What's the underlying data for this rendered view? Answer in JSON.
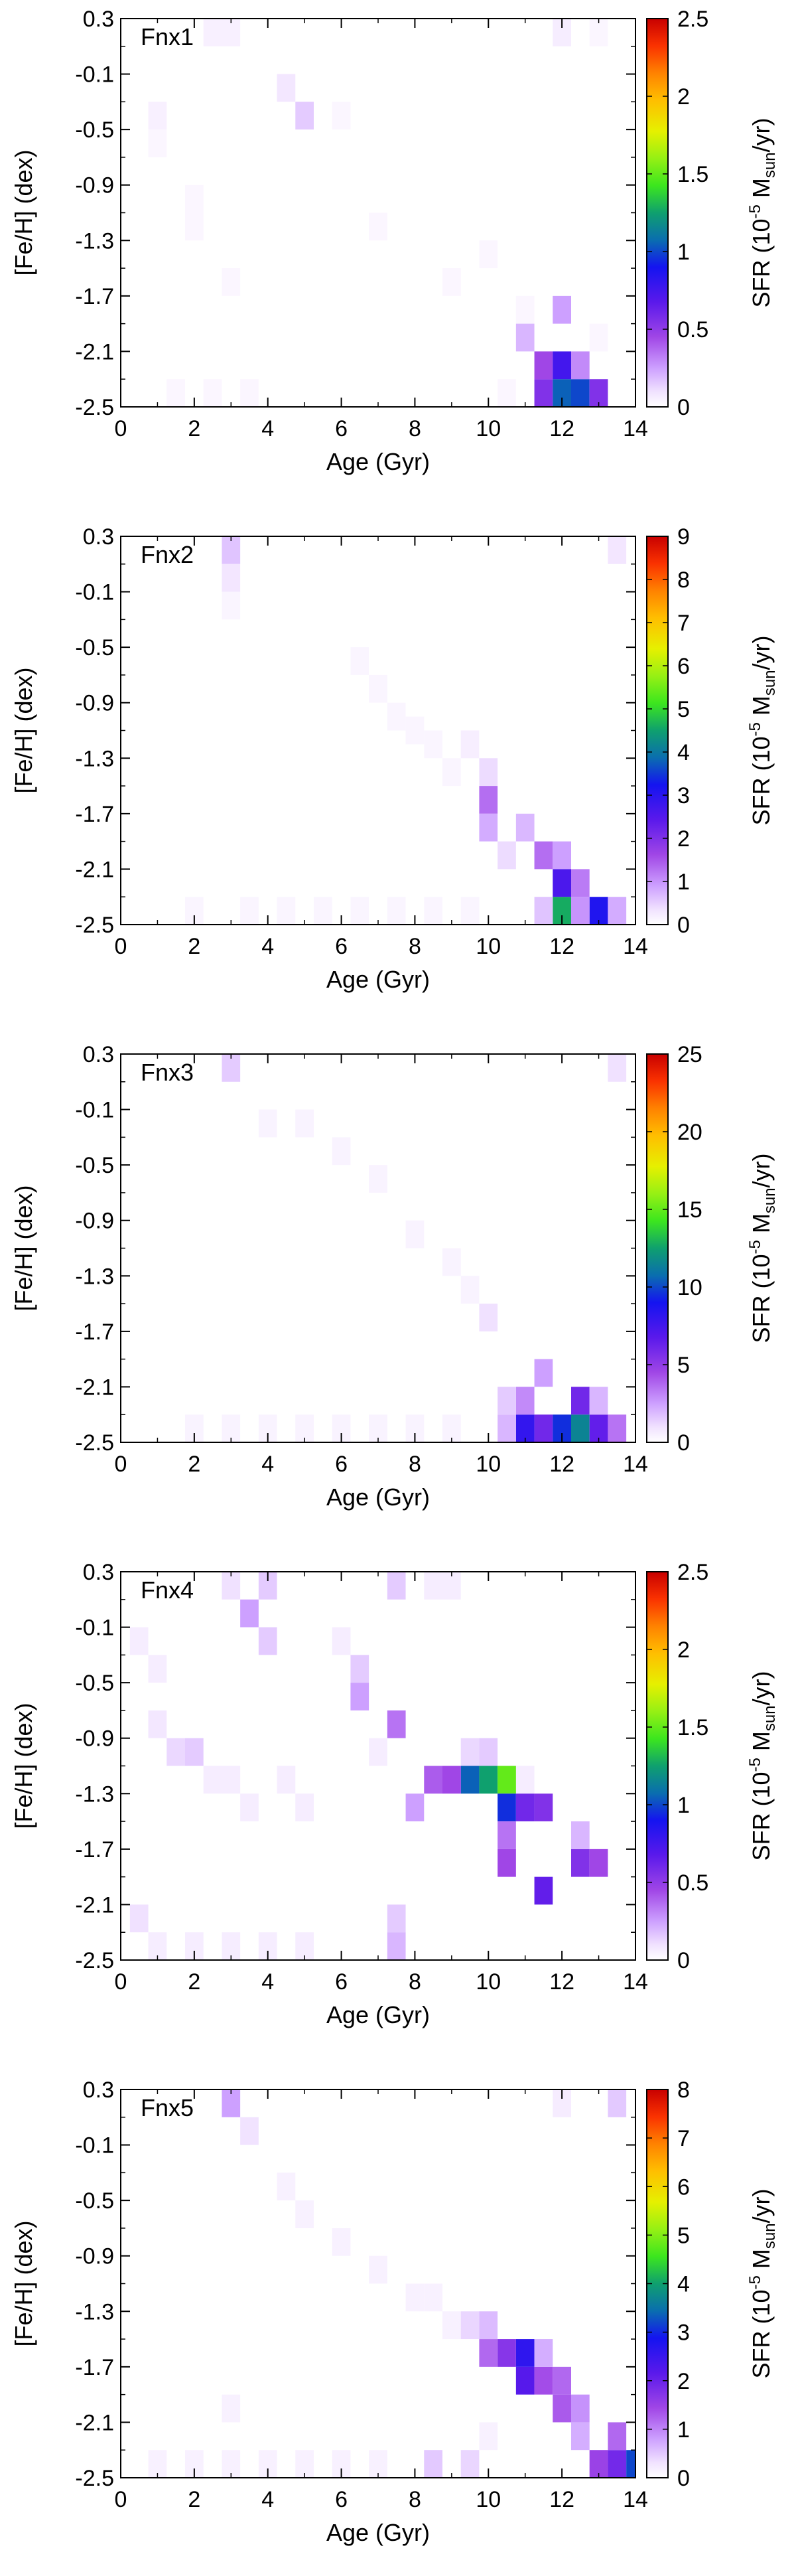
{
  "chart_data": [
    {
      "type": "heatmap",
      "panel_label": "Fnx1",
      "xlabel": "Age (Gyr)",
      "ylabel": "[Fe/H] (dex)",
      "colorbar_label": "SFR (10⁻⁵ Mₛᵤₙ/yr)",
      "colorbar_label_parts": {
        "prefix": "SFR (10",
        "exp": "-5",
        "mid": " M",
        "sub": "sun",
        "suffix": "/yr)"
      },
      "xlim": [
        0,
        14
      ],
      "ylim": [
        -2.5,
        0.3
      ],
      "xticks": [
        0,
        2,
        4,
        6,
        8,
        10,
        12,
        14
      ],
      "yticks": [
        -2.5,
        -2.1,
        -1.7,
        -1.3,
        -0.9,
        -0.5,
        -0.1,
        0.3
      ],
      "xtick_labels": [
        "0",
        "2",
        "4",
        "6",
        "8",
        "10",
        "12",
        "14"
      ],
      "ytick_labels": [
        "-2.5",
        "-2.1",
        "-1.7",
        "-1.3",
        "-0.9",
        "-0.5",
        "-0.1",
        "0.3"
      ],
      "cbar_range": [
        0,
        2.5
      ],
      "cbar_ticks": [
        0,
        0.5,
        1,
        1.5,
        2,
        2.5
      ],
      "cbar_tick_labels": [
        "0",
        "0.5",
        "1",
        "1.5",
        "2",
        "2.5"
      ],
      "age_bin_width": 0.5,
      "feh_bin_width": 0.2,
      "cells": [
        {
          "age": 11.5,
          "feh": -2.4,
          "sfr": 0.55
        },
        {
          "age": 12.0,
          "feh": -2.4,
          "sfr": 1.05
        },
        {
          "age": 12.5,
          "feh": -2.4,
          "sfr": 1.0
        },
        {
          "age": 13.0,
          "feh": -2.4,
          "sfr": 0.55
        },
        {
          "age": 11.5,
          "feh": -2.2,
          "sfr": 0.45
        },
        {
          "age": 12.0,
          "feh": -2.2,
          "sfr": 0.75
        },
        {
          "age": 12.5,
          "feh": -2.2,
          "sfr": 0.3
        },
        {
          "age": 11.0,
          "feh": -2.0,
          "sfr": 0.2
        },
        {
          "age": 12.0,
          "feh": -1.8,
          "sfr": 0.25
        },
        {
          "age": 2.5,
          "feh": 0.2,
          "sfr": 0.05
        },
        {
          "age": 3.0,
          "feh": 0.2,
          "sfr": 0.05
        },
        {
          "age": 12.0,
          "feh": 0.2,
          "sfr": 0.06
        },
        {
          "age": 5.0,
          "feh": -0.4,
          "sfr": 0.15
        },
        {
          "age": 4.5,
          "feh": -0.2,
          "sfr": 0.08
        },
        {
          "age": 1.0,
          "feh": -0.4,
          "sfr": 0.05
        }
      ],
      "background_cells": [
        [
          1,
          -0.6
        ],
        [
          2,
          -1.0
        ],
        [
          2,
          -1.2
        ],
        [
          3,
          -1.6
        ],
        [
          1.5,
          -2.4
        ],
        [
          2.5,
          -2.4
        ],
        [
          3.5,
          -2.4
        ],
        [
          9,
          -1.6
        ],
        [
          10,
          -1.4
        ],
        [
          10.5,
          -2.4
        ],
        [
          11,
          -1.8
        ],
        [
          13,
          -2.0
        ],
        [
          13,
          0.2
        ],
        [
          6,
          -0.4
        ],
        [
          7,
          -1.2
        ]
      ],
      "background_level": 0.03
    },
    {
      "type": "heatmap",
      "panel_label": "Fnx2",
      "xlabel": "Age (Gyr)",
      "ylabel": "[Fe/H] (dex)",
      "colorbar_label": "SFR (10⁻⁵ Mₛᵤₙ/yr)",
      "colorbar_label_parts": {
        "prefix": "SFR (10",
        "exp": "-5",
        "mid": " M",
        "sub": "sun",
        "suffix": "/yr)"
      },
      "xlim": [
        0,
        14
      ],
      "ylim": [
        -2.5,
        0.3
      ],
      "xticks": [
        0,
        2,
        4,
        6,
        8,
        10,
        12,
        14
      ],
      "yticks": [
        -2.5,
        -2.1,
        -1.7,
        -1.3,
        -0.9,
        -0.5,
        -0.1,
        0.3
      ],
      "xtick_labels": [
        "0",
        "2",
        "4",
        "6",
        "8",
        "10",
        "12",
        "14"
      ],
      "ytick_labels": [
        "-2.5",
        "-2.1",
        "-1.7",
        "-1.3",
        "-0.9",
        "-0.5",
        "-0.1",
        "0.3"
      ],
      "cbar_range": [
        0,
        9
      ],
      "cbar_ticks": [
        0,
        1,
        2,
        3,
        4,
        5,
        6,
        7,
        8,
        9
      ],
      "cbar_tick_labels": [
        "0",
        "1",
        "2",
        "3",
        "4",
        "5",
        "6",
        "7",
        "8",
        "9"
      ],
      "age_bin_width": 0.5,
      "feh_bin_width": 0.2,
      "cells": [
        {
          "age": 12.0,
          "feh": -2.4,
          "sfr": 4.6
        },
        {
          "age": 13.0,
          "feh": -2.4,
          "sfr": 3.1
        },
        {
          "age": 12.5,
          "feh": -2.4,
          "sfr": 1.0
        },
        {
          "age": 13.5,
          "feh": -2.4,
          "sfr": 0.8
        },
        {
          "age": 11.5,
          "feh": -2.4,
          "sfr": 0.6
        },
        {
          "age": 12.0,
          "feh": -2.2,
          "sfr": 2.6
        },
        {
          "age": 12.5,
          "feh": -2.2,
          "sfr": 1.2
        },
        {
          "age": 11.5,
          "feh": -2.0,
          "sfr": 1.3
        },
        {
          "age": 12.0,
          "feh": -2.0,
          "sfr": 0.9
        },
        {
          "age": 10.0,
          "feh": -1.6,
          "sfr": 1.3
        },
        {
          "age": 10.0,
          "feh": -1.8,
          "sfr": 0.8
        },
        {
          "age": 11.0,
          "feh": -1.8,
          "sfr": 0.7
        },
        {
          "age": 3.0,
          "feh": 0.2,
          "sfr": 0.6
        },
        {
          "age": 3.0,
          "feh": 0.0,
          "sfr": 0.3
        },
        {
          "age": 13.5,
          "feh": 0.2,
          "sfr": 0.3
        },
        {
          "age": 10.0,
          "feh": -1.4,
          "sfr": 0.4
        },
        {
          "age": 9.5,
          "feh": -1.2,
          "sfr": 0.2
        },
        {
          "age": 10.5,
          "feh": -2.0,
          "sfr": 0.4
        }
      ],
      "background_cells": [
        [
          6.5,
          -0.6
        ],
        [
          7,
          -0.8
        ],
        [
          7.5,
          -1.0
        ],
        [
          8,
          -1.1
        ],
        [
          8.5,
          -1.2
        ],
        [
          9,
          -1.4
        ],
        [
          2,
          -2.4
        ],
        [
          3.5,
          -2.4
        ],
        [
          4.5,
          -2.4
        ],
        [
          5.5,
          -2.4
        ],
        [
          6.5,
          -2.4
        ],
        [
          7.5,
          -2.4
        ],
        [
          8.5,
          -2.4
        ],
        [
          9.5,
          -2.4
        ],
        [
          3,
          -0.2
        ]
      ],
      "background_level": 0.12
    },
    {
      "type": "heatmap",
      "panel_label": "Fnx3",
      "xlabel": "Age (Gyr)",
      "ylabel": "[Fe/H] (dex)",
      "colorbar_label": "SFR (10⁻⁵ Mₛᵤₙ/yr)",
      "colorbar_label_parts": {
        "prefix": "SFR (10",
        "exp": "-5",
        "mid": " M",
        "sub": "sun",
        "suffix": "/yr)"
      },
      "xlim": [
        0,
        14
      ],
      "ylim": [
        -2.5,
        0.3
      ],
      "xticks": [
        0,
        2,
        4,
        6,
        8,
        10,
        12,
        14
      ],
      "yticks": [
        -2.5,
        -2.1,
        -1.7,
        -1.3,
        -0.9,
        -0.5,
        -0.1,
        0.3
      ],
      "xtick_labels": [
        "0",
        "2",
        "4",
        "6",
        "8",
        "10",
        "12",
        "14"
      ],
      "ytick_labels": [
        "-2.5",
        "-2.1",
        "-1.7",
        "-1.3",
        "-0.9",
        "-0.5",
        "-0.1",
        "0.3"
      ],
      "cbar_range": [
        0,
        25
      ],
      "cbar_ticks": [
        0,
        5,
        10,
        15,
        20,
        25
      ],
      "cbar_tick_labels": [
        "0",
        "5",
        "10",
        "15",
        "20",
        "25"
      ],
      "age_bin_width": 0.5,
      "feh_bin_width": 0.2,
      "cells": [
        {
          "age": 11.0,
          "feh": -2.4,
          "sfr": 8.0
        },
        {
          "age": 11.5,
          "feh": -2.4,
          "sfr": 6.0
        },
        {
          "age": 12.0,
          "feh": -2.4,
          "sfr": 9.5
        },
        {
          "age": 12.5,
          "feh": -2.4,
          "sfr": 11.5
        },
        {
          "age": 13.0,
          "feh": -2.4,
          "sfr": 6.5
        },
        {
          "age": 13.5,
          "feh": -2.4,
          "sfr": 3.5
        },
        {
          "age": 12.5,
          "feh": -2.2,
          "sfr": 6.0
        },
        {
          "age": 11.0,
          "feh": -2.2,
          "sfr": 3.0
        },
        {
          "age": 13.0,
          "feh": -2.2,
          "sfr": 2.0
        },
        {
          "age": 11.5,
          "feh": -2.0,
          "sfr": 2.5
        },
        {
          "age": 10.5,
          "feh": -2.4,
          "sfr": 2.0
        },
        {
          "age": 10.5,
          "feh": -2.2,
          "sfr": 1.5
        },
        {
          "age": 10.0,
          "feh": -1.6,
          "sfr": 1.0
        },
        {
          "age": 3.0,
          "feh": 0.2,
          "sfr": 1.5
        },
        {
          "age": 13.5,
          "feh": 0.2,
          "sfr": 1.0
        }
      ],
      "background_cells": [
        [
          6,
          -0.4
        ],
        [
          7,
          -0.6
        ],
        [
          8,
          -1.0
        ],
        [
          9,
          -1.2
        ],
        [
          9.5,
          -1.4
        ],
        [
          4,
          -0.2
        ],
        [
          5,
          -0.2
        ],
        [
          8,
          -2.4
        ],
        [
          9,
          -2.4
        ],
        [
          7,
          -2.4
        ],
        [
          6,
          -2.4
        ],
        [
          5,
          -2.4
        ],
        [
          4,
          -2.4
        ],
        [
          3,
          -2.4
        ],
        [
          2,
          -2.4
        ]
      ],
      "background_level": 0.4
    },
    {
      "type": "heatmap",
      "panel_label": "Fnx4",
      "xlabel": "Age (Gyr)",
      "ylabel": "[Fe/H] (dex)",
      "colorbar_label": "SFR (10⁻⁵ Mₛᵤₙ/yr)",
      "colorbar_label_parts": {
        "prefix": "SFR (10",
        "exp": "-5",
        "mid": " M",
        "sub": "sun",
        "suffix": "/yr)"
      },
      "xlim": [
        0,
        14
      ],
      "ylim": [
        -2.5,
        0.3
      ],
      "xticks": [
        0,
        2,
        4,
        6,
        8,
        10,
        12,
        14
      ],
      "yticks": [
        -2.5,
        -2.1,
        -1.7,
        -1.3,
        -0.9,
        -0.5,
        -0.1,
        0.3
      ],
      "xtick_labels": [
        "0",
        "2",
        "4",
        "6",
        "8",
        "10",
        "12",
        "14"
      ],
      "ytick_labels": [
        "-2.5",
        "-2.1",
        "-1.7",
        "-1.3",
        "-0.9",
        "-0.5",
        "-0.1",
        "0.3"
      ],
      "cbar_range": [
        0,
        2.5
      ],
      "cbar_ticks": [
        0,
        0.5,
        1,
        1.5,
        2,
        2.5
      ],
      "cbar_tick_labels": [
        "0",
        "0.5",
        "1",
        "1.5",
        "2",
        "2.5"
      ],
      "age_bin_width": 0.5,
      "feh_bin_width": 0.2,
      "cells": [
        {
          "age": 9.5,
          "feh": -1.2,
          "sfr": 1.05
        },
        {
          "age": 10.0,
          "feh": -1.2,
          "sfr": 1.25
        },
        {
          "age": 10.5,
          "feh": -1.2,
          "sfr": 1.5
        },
        {
          "age": 10.5,
          "feh": -1.4,
          "sfr": 0.95
        },
        {
          "age": 11.0,
          "feh": -1.4,
          "sfr": 0.6
        },
        {
          "age": 11.5,
          "feh": -1.4,
          "sfr": 0.55
        },
        {
          "age": 9.0,
          "feh": -1.2,
          "sfr": 0.45
        },
        {
          "age": 8.5,
          "feh": -1.2,
          "sfr": 0.4
        },
        {
          "age": 8.0,
          "feh": -1.4,
          "sfr": 0.25
        },
        {
          "age": 10.5,
          "feh": -1.6,
          "sfr": 0.35
        },
        {
          "age": 10.5,
          "feh": -1.8,
          "sfr": 0.45
        },
        {
          "age": 11.5,
          "feh": -2.0,
          "sfr": 0.65
        },
        {
          "age": 12.5,
          "feh": -1.8,
          "sfr": 0.55
        },
        {
          "age": 13.0,
          "feh": -1.8,
          "sfr": 0.45
        },
        {
          "age": 12.5,
          "feh": -1.6,
          "sfr": 0.2
        },
        {
          "age": 7.5,
          "feh": -0.8,
          "sfr": 0.35
        },
        {
          "age": 6.5,
          "feh": -0.6,
          "sfr": 0.25
        },
        {
          "age": 6.5,
          "feh": -0.4,
          "sfr": 0.15
        },
        {
          "age": 3.5,
          "feh": 0.0,
          "sfr": 0.25
        },
        {
          "age": 4.0,
          "feh": 0.2,
          "sfr": 0.15
        },
        {
          "age": 3.0,
          "feh": 0.2,
          "sfr": 0.1
        },
        {
          "age": 4.0,
          "feh": -0.2,
          "sfr": 0.15
        },
        {
          "age": 7.5,
          "feh": -2.2,
          "sfr": 0.15
        },
        {
          "age": 7.5,
          "feh": -2.4,
          "sfr": 0.2
        },
        {
          "age": 0.5,
          "feh": -2.2,
          "sfr": 0.1
        },
        {
          "age": 1.5,
          "feh": -1.0,
          "sfr": 0.12
        },
        {
          "age": 2.0,
          "feh": -1.0,
          "sfr": 0.15
        },
        {
          "age": 1.0,
          "feh": -0.8,
          "sfr": 0.08
        },
        {
          "age": 7.5,
          "feh": 0.2,
          "sfr": 0.15
        },
        {
          "age": 9.5,
          "feh": -1.0,
          "sfr": 0.12
        },
        {
          "age": 10.0,
          "feh": -1.0,
          "sfr": 0.15
        }
      ],
      "background_cells": [
        [
          0.5,
          -0.2
        ],
        [
          1,
          -0.4
        ],
        [
          2.5,
          -1.2
        ],
        [
          3,
          -1.2
        ],
        [
          3.5,
          -1.4
        ],
        [
          4.5,
          -1.2
        ],
        [
          5,
          -1.4
        ],
        [
          6,
          -0.2
        ],
        [
          7,
          -1.0
        ],
        [
          1,
          -2.4
        ],
        [
          2,
          -2.4
        ],
        [
          3,
          -2.4
        ],
        [
          4,
          -2.4
        ],
        [
          5,
          -2.4
        ],
        [
          8.5,
          0.2
        ],
        [
          9,
          0.2
        ],
        [
          11,
          -1.2
        ]
      ],
      "background_level": 0.06
    },
    {
      "type": "heatmap",
      "panel_label": "Fnx5",
      "xlabel": "Age (Gyr)",
      "ylabel": "[Fe/H] (dex)",
      "colorbar_label": "SFR (10⁻⁵ Mₛᵤₙ/yr)",
      "colorbar_label_parts": {
        "prefix": "SFR (10",
        "exp": "-5",
        "mid": " M",
        "sub": "sun",
        "suffix": "/yr)"
      },
      "xlim": [
        0,
        14
      ],
      "ylim": [
        -2.5,
        0.3
      ],
      "xticks": [
        0,
        2,
        4,
        6,
        8,
        10,
        12,
        14
      ],
      "yticks": [
        -2.5,
        -2.1,
        -1.7,
        -1.3,
        -0.9,
        -0.5,
        -0.1,
        0.3
      ],
      "xtick_labels": [
        "0",
        "2",
        "4",
        "6",
        "8",
        "10",
        "12",
        "14"
      ],
      "ytick_labels": [
        "-2.5",
        "-2.1",
        "-1.7",
        "-1.3",
        "-0.9",
        "-0.5",
        "-0.1",
        "0.3"
      ],
      "cbar_range": [
        0,
        8
      ],
      "cbar_ticks": [
        0,
        1,
        2,
        3,
        4,
        5,
        6,
        7,
        8
      ],
      "cbar_tick_labels": [
        "0",
        "1",
        "2",
        "3",
        "4",
        "5",
        "6",
        "7",
        "8"
      ],
      "age_bin_width": 0.5,
      "feh_bin_width": 0.2,
      "cells": [
        {
          "age": 11.0,
          "feh": -1.6,
          "sfr": 2.6
        },
        {
          "age": 11.0,
          "feh": -1.8,
          "sfr": 2.2
        },
        {
          "age": 10.5,
          "feh": -1.6,
          "sfr": 1.7
        },
        {
          "age": 10.0,
          "feh": -1.6,
          "sfr": 1.2
        },
        {
          "age": 11.5,
          "feh": -1.8,
          "sfr": 1.4
        },
        {
          "age": 12.0,
          "feh": -1.8,
          "sfr": 1.2
        },
        {
          "age": 12.0,
          "feh": -2.0,
          "sfr": 1.3
        },
        {
          "age": 12.5,
          "feh": -2.0,
          "sfr": 0.9
        },
        {
          "age": 12.5,
          "feh": -2.2,
          "sfr": 0.7
        },
        {
          "age": 13.0,
          "feh": -2.4,
          "sfr": 1.5
        },
        {
          "age": 13.5,
          "feh": -2.4,
          "sfr": 1.9
        },
        {
          "age": 14.0,
          "feh": -2.4,
          "sfr": 3.2
        },
        {
          "age": 13.5,
          "feh": -2.2,
          "sfr": 1.2
        },
        {
          "age": 11.5,
          "feh": -1.6,
          "sfr": 0.7
        },
        {
          "age": 10.0,
          "feh": -1.4,
          "sfr": 0.6
        },
        {
          "age": 9.5,
          "feh": -1.4,
          "sfr": 0.4
        },
        {
          "age": 8.5,
          "feh": -2.4,
          "sfr": 0.5
        },
        {
          "age": 9.5,
          "feh": -2.4,
          "sfr": 0.4
        },
        {
          "age": 3.0,
          "feh": 0.2,
          "sfr": 0.8
        },
        {
          "age": 3.5,
          "feh": 0.0,
          "sfr": 0.3
        },
        {
          "age": 13.5,
          "feh": 0.2,
          "sfr": 0.5
        },
        {
          "age": 12.0,
          "feh": 0.2,
          "sfr": 0.2
        }
      ],
      "background_cells": [
        [
          4.5,
          -0.4
        ],
        [
          5,
          -0.6
        ],
        [
          6,
          -0.8
        ],
        [
          7,
          -1.0
        ],
        [
          8,
          -1.2
        ],
        [
          8.5,
          -1.2
        ],
        [
          9,
          -1.4
        ],
        [
          3,
          -2.4
        ],
        [
          4,
          -2.4
        ],
        [
          5,
          -2.4
        ],
        [
          6,
          -2.4
        ],
        [
          7,
          -2.4
        ],
        [
          1,
          -2.4
        ],
        [
          2,
          -2.4
        ],
        [
          3,
          -2.0
        ],
        [
          10,
          -2.2
        ]
      ],
      "background_level": 0.15
    }
  ]
}
